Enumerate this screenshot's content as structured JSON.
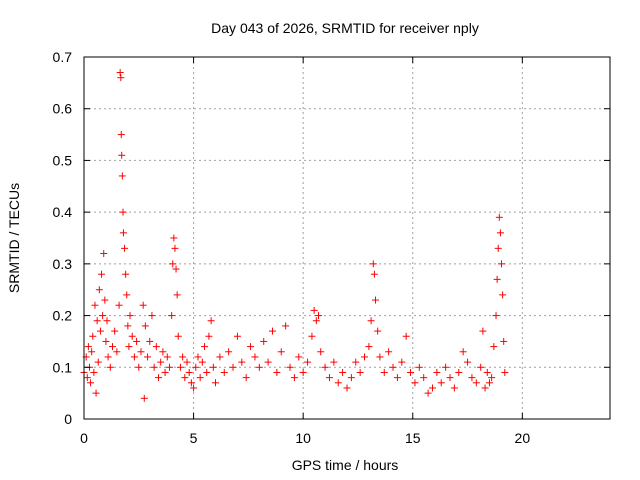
{
  "chart_data": {
    "type": "scatter",
    "title": "Day 043 of 2026, SRMTID for receiver nply",
    "xlabel": "GPS time / hours",
    "ylabel": "SRMTID / TECUs",
    "xlim": [
      0,
      24
    ],
    "ylim": [
      0,
      0.7
    ],
    "x_ticks": [
      0,
      5,
      10,
      15,
      20
    ],
    "x_tick_labels": [
      "0",
      "5",
      "10",
      "15",
      "20"
    ],
    "y_ticks": [
      0,
      0.1,
      0.2,
      0.3,
      0.4,
      0.5,
      0.6,
      0.7
    ],
    "y_tick_labels": [
      "0",
      "0.1",
      "0.2",
      "0.3",
      "0.4",
      "0.5",
      "0.6",
      "0.7"
    ],
    "grid": true,
    "marker": "+",
    "marker_color": "#ff0000",
    "series": [
      {
        "name": "SRMTID",
        "points": [
          [
            0.0,
            0.09
          ],
          [
            0.1,
            0.12
          ],
          [
            0.15,
            0.08
          ],
          [
            0.2,
            0.14
          ],
          [
            0.25,
            0.1
          ],
          [
            0.3,
            0.07
          ],
          [
            0.35,
            0.13
          ],
          [
            0.4,
            0.16
          ],
          [
            0.45,
            0.09
          ],
          [
            0.5,
            0.22
          ],
          [
            0.55,
            0.05
          ],
          [
            0.6,
            0.19
          ],
          [
            0.65,
            0.11
          ],
          [
            0.7,
            0.25
          ],
          [
            0.75,
            0.17
          ],
          [
            0.8,
            0.28
          ],
          [
            0.85,
            0.2
          ],
          [
            0.9,
            0.32
          ],
          [
            0.95,
            0.23
          ],
          [
            1.0,
            0.15
          ],
          [
            1.05,
            0.19
          ],
          [
            1.1,
            0.12
          ],
          [
            1.2,
            0.1
          ],
          [
            1.3,
            0.14
          ],
          [
            1.4,
            0.17
          ],
          [
            1.5,
            0.13
          ],
          [
            1.6,
            0.22
          ],
          [
            1.65,
            0.67
          ],
          [
            1.68,
            0.66
          ],
          [
            1.7,
            0.55
          ],
          [
            1.72,
            0.51
          ],
          [
            1.75,
            0.47
          ],
          [
            1.78,
            0.4
          ],
          [
            1.8,
            0.36
          ],
          [
            1.85,
            0.33
          ],
          [
            1.9,
            0.28
          ],
          [
            1.95,
            0.24
          ],
          [
            2.0,
            0.18
          ],
          [
            2.05,
            0.14
          ],
          [
            2.1,
            0.2
          ],
          [
            2.2,
            0.16
          ],
          [
            2.3,
            0.12
          ],
          [
            2.4,
            0.15
          ],
          [
            2.5,
            0.1
          ],
          [
            2.6,
            0.13
          ],
          [
            2.7,
            0.22
          ],
          [
            2.75,
            0.04
          ],
          [
            2.8,
            0.18
          ],
          [
            2.9,
            0.12
          ],
          [
            3.0,
            0.15
          ],
          [
            3.1,
            0.2
          ],
          [
            3.2,
            0.1
          ],
          [
            3.3,
            0.14
          ],
          [
            3.4,
            0.08
          ],
          [
            3.5,
            0.11
          ],
          [
            3.6,
            0.13
          ],
          [
            3.7,
            0.09
          ],
          [
            3.8,
            0.12
          ],
          [
            3.9,
            0.1
          ],
          [
            4.0,
            0.2
          ],
          [
            4.05,
            0.3
          ],
          [
            4.1,
            0.35
          ],
          [
            4.15,
            0.33
          ],
          [
            4.2,
            0.29
          ],
          [
            4.25,
            0.24
          ],
          [
            4.3,
            0.16
          ],
          [
            4.4,
            0.1
          ],
          [
            4.5,
            0.12
          ],
          [
            4.6,
            0.08
          ],
          [
            4.7,
            0.11
          ],
          [
            4.8,
            0.09
          ],
          [
            4.9,
            0.07
          ],
          [
            5.0,
            0.06
          ],
          [
            5.1,
            0.1
          ],
          [
            5.2,
            0.12
          ],
          [
            5.3,
            0.08
          ],
          [
            5.4,
            0.11
          ],
          [
            5.5,
            0.14
          ],
          [
            5.6,
            0.09
          ],
          [
            5.7,
            0.16
          ],
          [
            5.8,
            0.19
          ],
          [
            5.9,
            0.1
          ],
          [
            6.0,
            0.07
          ],
          [
            6.2,
            0.12
          ],
          [
            6.4,
            0.09
          ],
          [
            6.6,
            0.13
          ],
          [
            6.8,
            0.1
          ],
          [
            7.0,
            0.16
          ],
          [
            7.2,
            0.11
          ],
          [
            7.4,
            0.08
          ],
          [
            7.6,
            0.14
          ],
          [
            7.8,
            0.12
          ],
          [
            8.0,
            0.1
          ],
          [
            8.2,
            0.15
          ],
          [
            8.4,
            0.11
          ],
          [
            8.6,
            0.17
          ],
          [
            8.8,
            0.09
          ],
          [
            9.0,
            0.13
          ],
          [
            9.2,
            0.18
          ],
          [
            9.4,
            0.1
          ],
          [
            9.6,
            0.08
          ],
          [
            9.8,
            0.12
          ],
          [
            10.0,
            0.09
          ],
          [
            10.2,
            0.11
          ],
          [
            10.4,
            0.16
          ],
          [
            10.5,
            0.21
          ],
          [
            10.6,
            0.19
          ],
          [
            10.7,
            0.2
          ],
          [
            10.8,
            0.13
          ],
          [
            11.0,
            0.1
          ],
          [
            11.2,
            0.08
          ],
          [
            11.4,
            0.11
          ],
          [
            11.6,
            0.07
          ],
          [
            11.8,
            0.09
          ],
          [
            12.0,
            0.06
          ],
          [
            12.2,
            0.08
          ],
          [
            12.4,
            0.11
          ],
          [
            12.6,
            0.09
          ],
          [
            12.8,
            0.12
          ],
          [
            13.0,
            0.14
          ],
          [
            13.1,
            0.19
          ],
          [
            13.2,
            0.3
          ],
          [
            13.25,
            0.28
          ],
          [
            13.3,
            0.23
          ],
          [
            13.4,
            0.17
          ],
          [
            13.5,
            0.12
          ],
          [
            13.7,
            0.09
          ],
          [
            13.9,
            0.13
          ],
          [
            14.1,
            0.1
          ],
          [
            14.3,
            0.08
          ],
          [
            14.5,
            0.11
          ],
          [
            14.7,
            0.16
          ],
          [
            14.9,
            0.09
          ],
          [
            15.1,
            0.07
          ],
          [
            15.3,
            0.1
          ],
          [
            15.5,
            0.08
          ],
          [
            15.7,
            0.05
          ],
          [
            15.9,
            0.06
          ],
          [
            16.1,
            0.09
          ],
          [
            16.3,
            0.07
          ],
          [
            16.5,
            0.1
          ],
          [
            16.7,
            0.08
          ],
          [
            16.9,
            0.06
          ],
          [
            17.1,
            0.09
          ],
          [
            17.3,
            0.13
          ],
          [
            17.5,
            0.11
          ],
          [
            17.7,
            0.08
          ],
          [
            17.9,
            0.07
          ],
          [
            18.1,
            0.1
          ],
          [
            18.2,
            0.17
          ],
          [
            18.3,
            0.06
          ],
          [
            18.4,
            0.09
          ],
          [
            18.5,
            0.07
          ],
          [
            18.6,
            0.08
          ],
          [
            18.7,
            0.14
          ],
          [
            18.8,
            0.2
          ],
          [
            18.85,
            0.27
          ],
          [
            18.9,
            0.33
          ],
          [
            18.95,
            0.39
          ],
          [
            19.0,
            0.36
          ],
          [
            19.05,
            0.3
          ],
          [
            19.1,
            0.24
          ],
          [
            19.15,
            0.15
          ],
          [
            19.2,
            0.09
          ]
        ]
      }
    ]
  }
}
